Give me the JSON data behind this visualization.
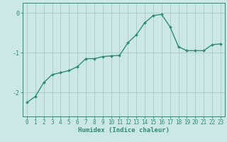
{
  "x": [
    0,
    1,
    2,
    3,
    4,
    5,
    6,
    7,
    8,
    9,
    10,
    11,
    12,
    13,
    14,
    15,
    16,
    17,
    18,
    19,
    20,
    21,
    22,
    23
  ],
  "y": [
    -2.25,
    -2.1,
    -1.75,
    -1.55,
    -1.5,
    -1.45,
    -1.35,
    -1.15,
    -1.15,
    -1.1,
    -1.08,
    -1.07,
    -0.75,
    -0.55,
    -0.25,
    -0.07,
    -0.04,
    -0.35,
    -0.85,
    -0.95,
    -0.95,
    -0.95,
    -0.8,
    -0.78
  ],
  "line_color": "#2e8b74",
  "marker": "D",
  "marker_size": 2.0,
  "bg_color": "#cce8e4",
  "grid_color": "#aacfcb",
  "axis_color": "#2e8b74",
  "xlabel": "Humidex (Indice chaleur)",
  "xlabel_fontsize": 6.5,
  "yticks": [
    -2,
    -1,
    0
  ],
  "xlim": [
    -0.5,
    23.5
  ],
  "ylim": [
    -2.6,
    0.25
  ],
  "tick_color": "#2e8b74",
  "tick_fontsize": 5.5,
  "linewidth": 1.0
}
